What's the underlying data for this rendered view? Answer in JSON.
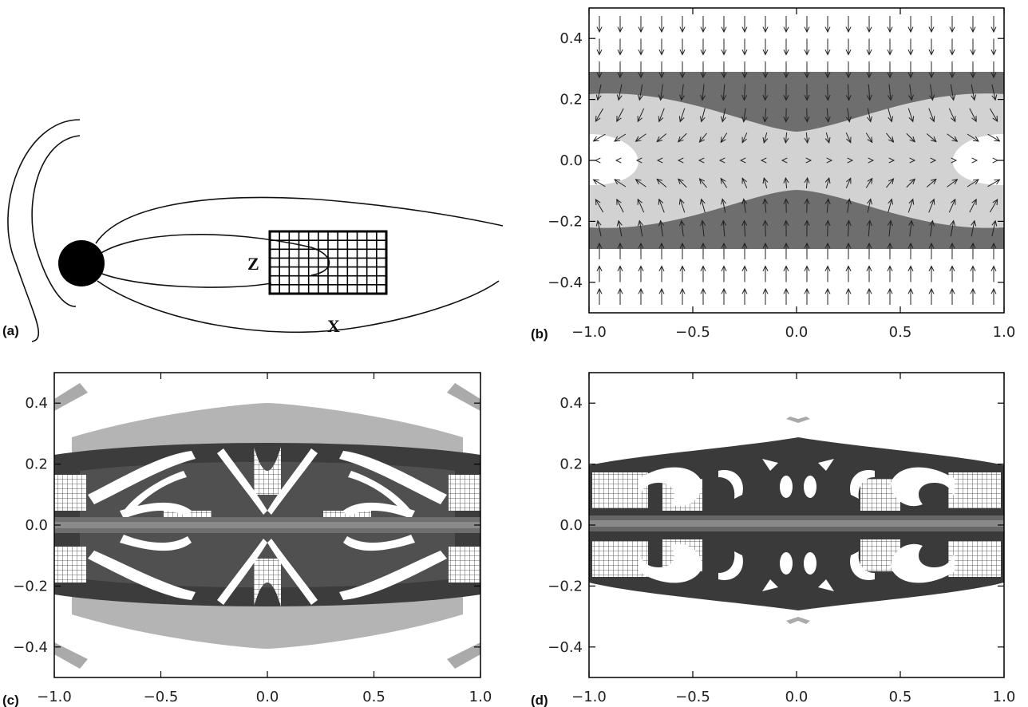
{
  "panels": [
    {
      "id": "a",
      "label": "(a)",
      "axis_labels": [
        "Z",
        "X"
      ]
    },
    {
      "id": "b",
      "label": "(b)"
    },
    {
      "id": "c",
      "label": "(c)"
    },
    {
      "id": "d",
      "label": "(d)"
    }
  ],
  "axes": {
    "xticks": [
      "−1.0",
      "−0.5",
      "0.0",
      "0.5",
      "1.0"
    ],
    "yticks": [
      "0.4",
      "0.2",
      "0.0",
      "−0.2",
      "−0.4"
    ],
    "xlim": [
      -1.0,
      1.0
    ],
    "ylim": [
      -0.5,
      0.5
    ]
  },
  "colors": {
    "light": "#d2d2d2",
    "medium": "#9a9a9a",
    "dark": "#6e6e6e",
    "darker": "#3a3a3a",
    "black": "#111111"
  }
}
